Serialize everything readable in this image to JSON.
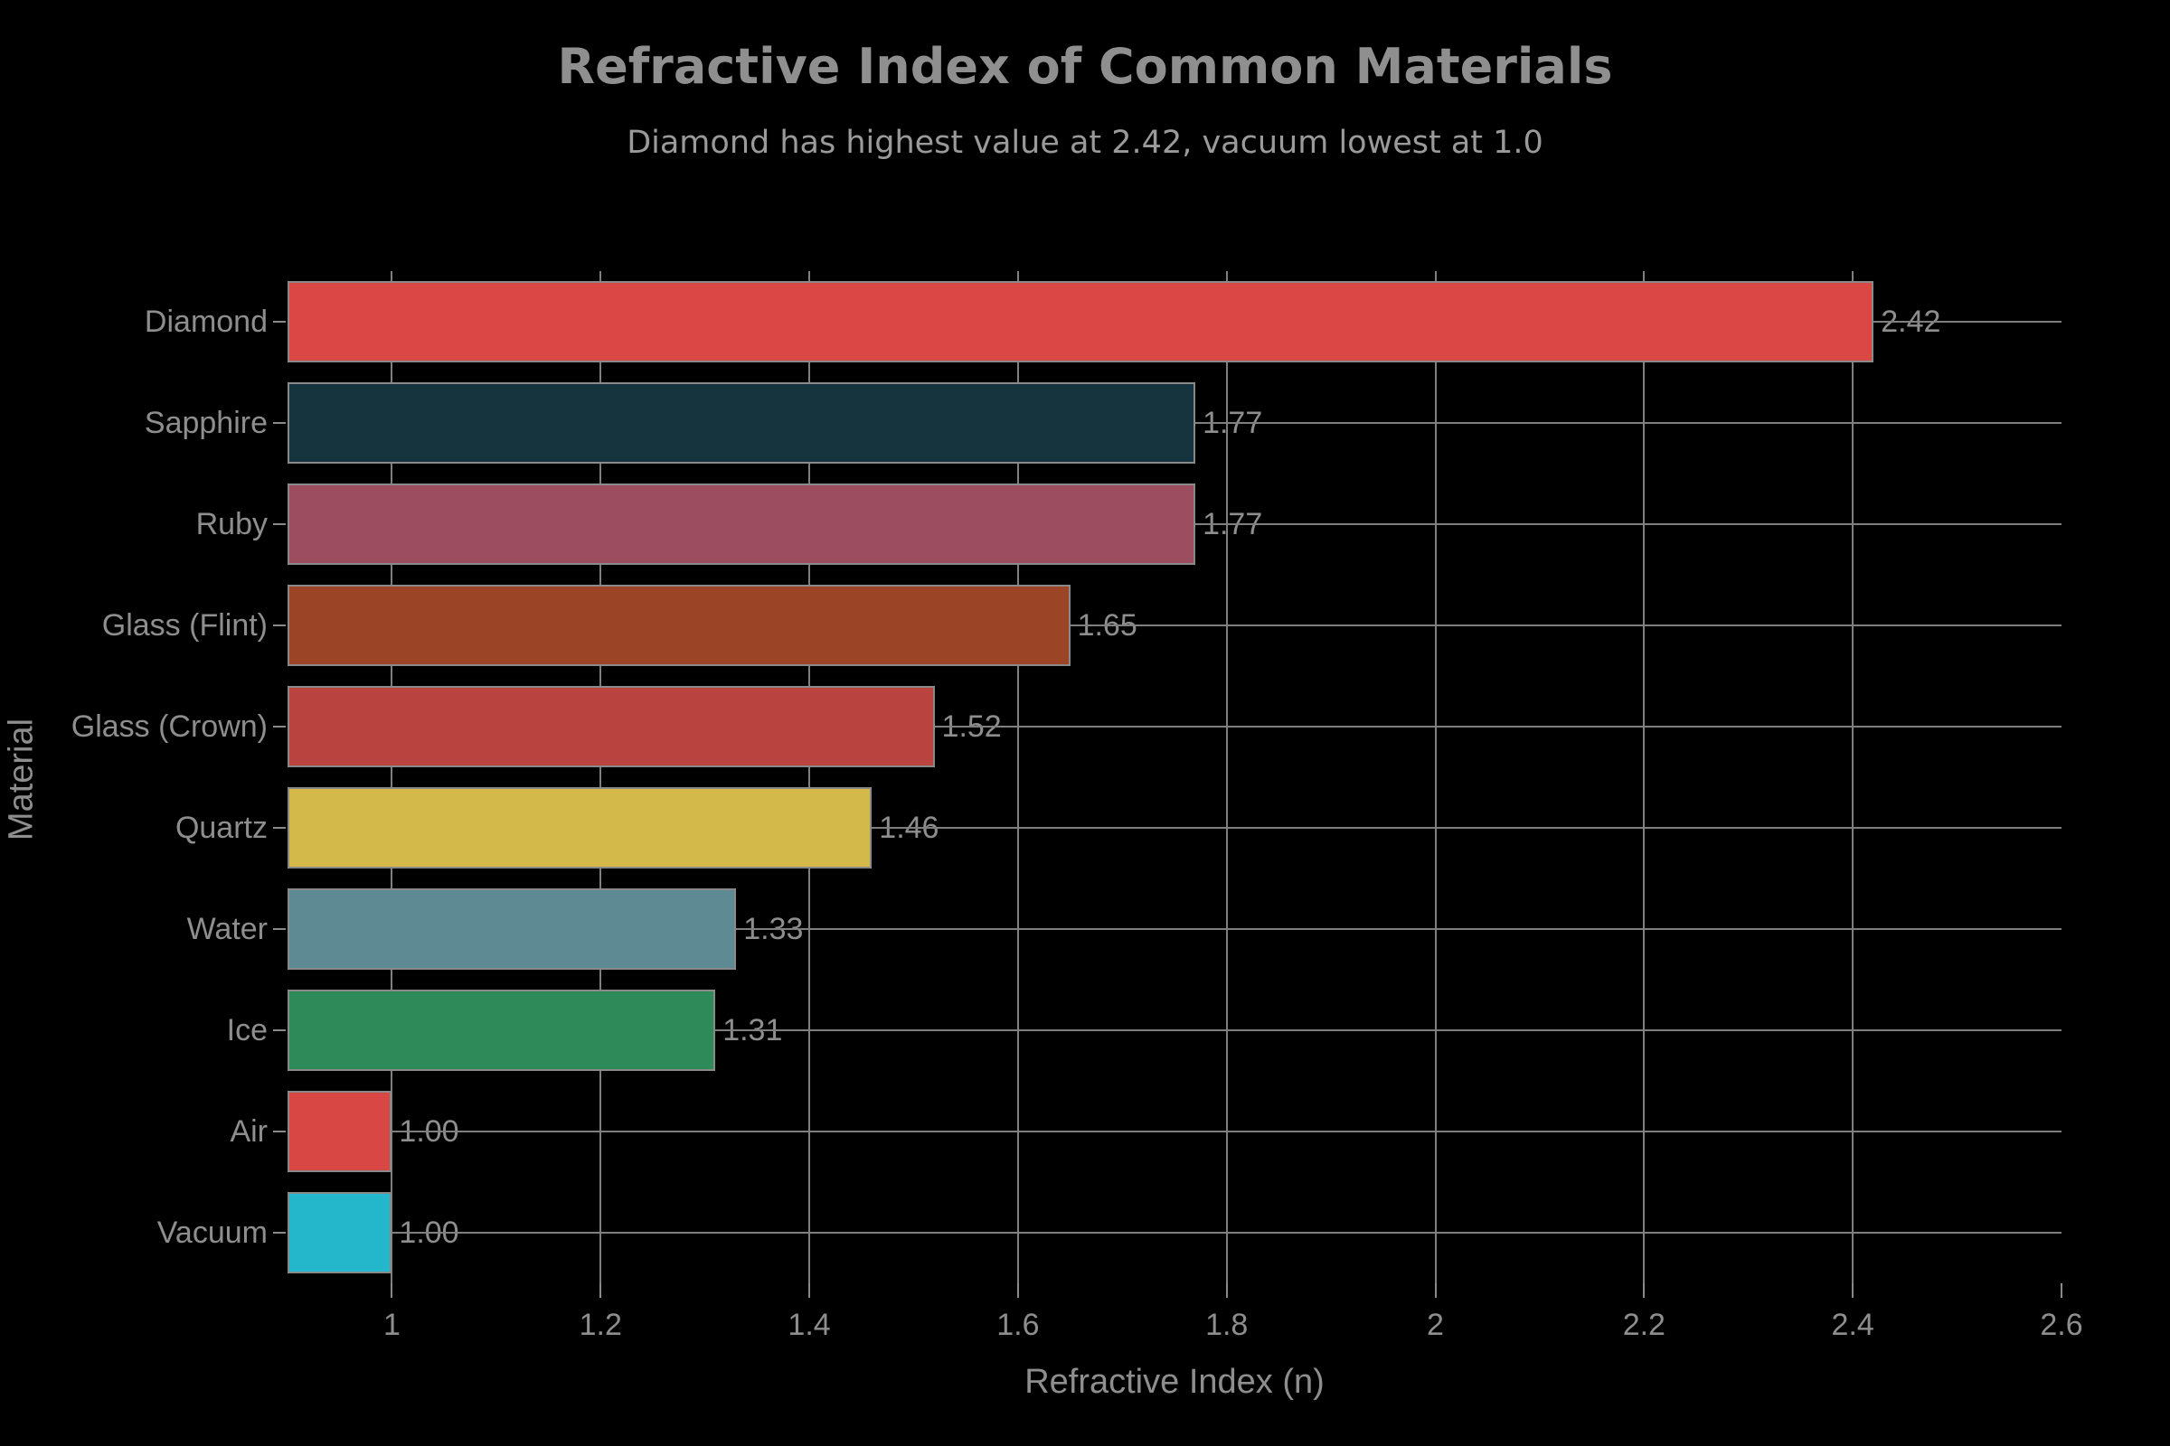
{
  "chart_data": {
    "type": "bar",
    "orientation": "horizontal",
    "title": "Refractive Index of Common Materials",
    "subtitle": "Diamond has highest value at 2.42, vacuum lowest at 1.0",
    "xlabel": "Refractive Index (n)",
    "ylabel": "Material",
    "categories": [
      "Diamond",
      "Sapphire",
      "Ruby",
      "Glass (Flint)",
      "Glass (Crown)",
      "Quartz",
      "Water",
      "Ice",
      "Air",
      "Vacuum"
    ],
    "values": [
      2.42,
      1.77,
      1.77,
      1.65,
      1.52,
      1.46,
      1.33,
      1.31,
      1.0,
      1.0
    ],
    "value_labels": [
      "2.42",
      "1.77",
      "1.77",
      "1.65",
      "1.52",
      "1.46",
      "1.33",
      "1.31",
      "1.00",
      "1.00"
    ],
    "bar_colors": [
      "#DB4745",
      "#16343D",
      "#9C4D60",
      "#9C4526",
      "#B9433E",
      "#D3B94A",
      "#5E8A94",
      "#2E8A58",
      "#D94745",
      "#24B6CA"
    ],
    "xlim": [
      0.9,
      2.6
    ],
    "x_ticks": [
      1,
      1.2,
      1.4,
      1.6,
      1.8,
      2,
      2.2,
      2.4,
      2.6
    ],
    "x_tick_labels": [
      "1",
      "1.2",
      "1.4",
      "1.6",
      "1.8",
      "2",
      "2.2",
      "2.4",
      "2.6"
    ],
    "x_gridlines": [
      1,
      1.2,
      1.4,
      1.6,
      1.8,
      2,
      2.2,
      2.4
    ],
    "grid": true,
    "legend": "none",
    "colors": {
      "background": "#000000",
      "text": "#8e8e8e",
      "grid": "#7f7f7f",
      "bar_edge": "#8a8a8a"
    }
  }
}
